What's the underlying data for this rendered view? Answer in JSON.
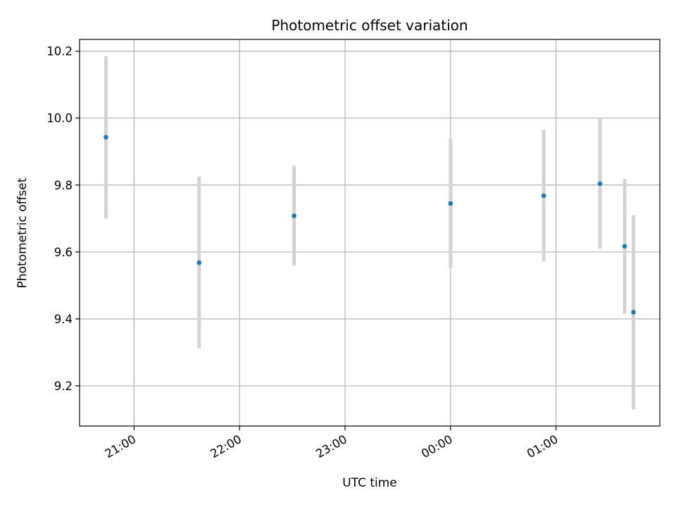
{
  "chart_data": {
    "type": "scatter",
    "title": "Photometric offset variation",
    "xlabel": "UTC time",
    "ylabel": "Photometric offset",
    "x_ticks": [
      "21:00",
      "22:00",
      "23:00",
      "00:00",
      "01:00"
    ],
    "y_ticks": [
      "9.2",
      "9.4",
      "9.6",
      "9.8",
      "10.0",
      "10.2"
    ],
    "x_tick_values": [
      "20:59",
      "21:59",
      "22:59",
      "23:59",
      "00:59"
    ],
    "ylim": [
      9.08,
      10.235
    ],
    "xlim": [
      "20:28",
      "01:58"
    ],
    "grid": true,
    "series": [
      {
        "points": [
          {
            "time": "20:43",
            "y": 9.943,
            "err_low": 9.7,
            "err_high": 10.185
          },
          {
            "time": "21:36",
            "y": 9.568,
            "err_low": 9.312,
            "err_high": 9.825
          },
          {
            "time": "22:30",
            "y": 9.708,
            "err_low": 9.56,
            "err_high": 9.858
          },
          {
            "time": "23:59",
            "y": 9.745,
            "err_low": 9.552,
            "err_high": 9.937
          },
          {
            "time": "00:52",
            "y": 9.768,
            "err_low": 9.572,
            "err_high": 9.965
          },
          {
            "time": "01:24",
            "y": 9.804,
            "err_low": 9.61,
            "err_high": 9.998
          },
          {
            "time": "01:38",
            "y": 9.617,
            "err_low": 9.415,
            "err_high": 9.818
          },
          {
            "time": "01:43",
            "y": 9.42,
            "err_low": 9.13,
            "err_high": 9.71
          }
        ]
      }
    ],
    "colors": {
      "marker": "#1f77b4",
      "errorbar": "#d3d3d3",
      "grid": "#b0b0b0"
    }
  }
}
